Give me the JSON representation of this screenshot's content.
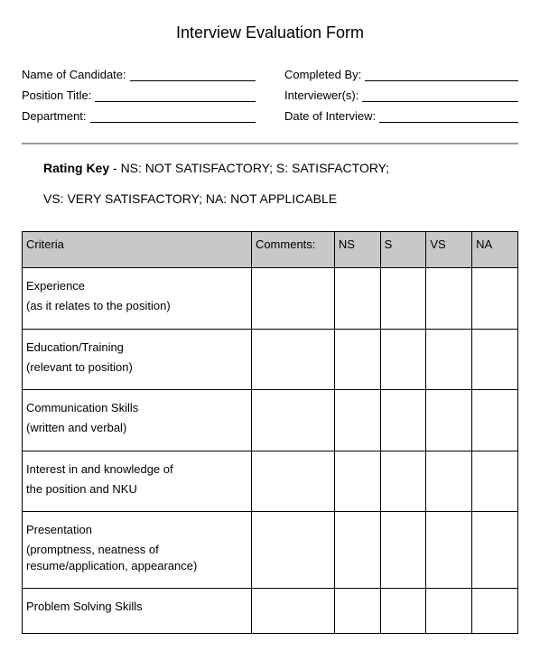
{
  "title": "Interview Evaluation Form",
  "fields_left": [
    {
      "label": "Name of Candidate:"
    },
    {
      "label": "Position Title:"
    },
    {
      "label": "Department:"
    }
  ],
  "fields_right": [
    {
      "label": "Completed By:"
    },
    {
      "label": "Interviewer(s):"
    },
    {
      "label": "Date of Interview:"
    }
  ],
  "rating_key": {
    "label": "Rating Key",
    "line1": " - NS: NOT SATISFACTORY;  S: SATISFACTORY;",
    "line2": "VS: VERY SATISFACTORY;  NA: NOT APPLICABLE"
  },
  "table": {
    "headers": [
      "Criteria",
      "Comments:",
      "NS",
      "S",
      "VS",
      "NA"
    ],
    "rows": [
      {
        "main": "Experience",
        "sub": "(as it relates to the position)"
      },
      {
        "main": "Education/Training",
        "sub": "(relevant to position)"
      },
      {
        "main": "Communication Skills",
        "sub": "(written and verbal)"
      },
      {
        "main": "Interest in and knowledge of",
        "sub": "the position and NKU"
      },
      {
        "main": "Presentation",
        "sub": "(promptness, neatness of resume/application, appearance)"
      },
      {
        "main": "Problem Solving Skills",
        "sub": ""
      }
    ]
  },
  "colors": {
    "header_bg": "#c8c8c8",
    "border": "#000000",
    "divider": "#999999",
    "text": "#000000",
    "background": "#ffffff"
  }
}
